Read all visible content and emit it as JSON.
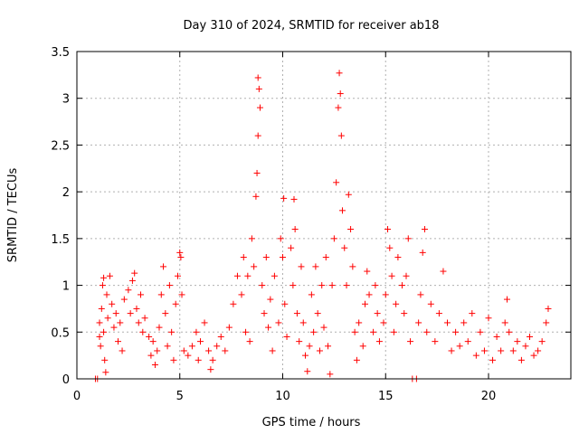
{
  "chart_data": {
    "type": "scatter",
    "title": "Day 310 of 2024, SRMTID for receiver ab18",
    "xlabel": "GPS time / hours",
    "ylabel": "SRMTID / TECUs",
    "xlim": [
      0,
      24
    ],
    "ylim": [
      0,
      3.5
    ],
    "xticks": [
      0,
      5,
      10,
      15,
      20
    ],
    "xtick_labels": [
      "0",
      "5",
      "10",
      "15",
      "20"
    ],
    "yticks": [
      0,
      0.5,
      1,
      1.5,
      2,
      2.5,
      3,
      3.5
    ],
    "ytick_labels": [
      "0",
      "0.5",
      "1",
      "1.5",
      "2",
      "2.5",
      "3",
      "3.5"
    ],
    "grid": true,
    "marker": "+",
    "color": "#ff0000",
    "series": [
      {
        "name": "SRMTID",
        "points": [
          [
            0.9,
            0.0
          ],
          [
            1.0,
            0.0
          ],
          [
            1.1,
            0.45
          ],
          [
            1.1,
            0.6
          ],
          [
            1.15,
            0.35
          ],
          [
            1.2,
            0.75
          ],
          [
            1.25,
            1.0
          ],
          [
            1.3,
            1.08
          ],
          [
            1.3,
            0.5
          ],
          [
            1.35,
            0.2
          ],
          [
            1.4,
            0.07
          ],
          [
            1.45,
            0.9
          ],
          [
            1.5,
            0.65
          ],
          [
            1.6,
            1.1
          ],
          [
            1.7,
            0.8
          ],
          [
            1.8,
            0.55
          ],
          [
            1.9,
            0.7
          ],
          [
            2.0,
            0.4
          ],
          [
            2.1,
            0.6
          ],
          [
            2.2,
            0.3
          ],
          [
            2.3,
            0.85
          ],
          [
            2.5,
            0.95
          ],
          [
            2.6,
            0.7
          ],
          [
            2.7,
            1.05
          ],
          [
            2.8,
            1.13
          ],
          [
            2.9,
            0.75
          ],
          [
            3.0,
            0.6
          ],
          [
            3.1,
            0.9
          ],
          [
            3.2,
            0.5
          ],
          [
            3.3,
            0.65
          ],
          [
            3.5,
            0.45
          ],
          [
            3.6,
            0.25
          ],
          [
            3.7,
            0.4
          ],
          [
            3.8,
            0.15
          ],
          [
            3.9,
            0.3
          ],
          [
            4.0,
            0.55
          ],
          [
            4.1,
            0.9
          ],
          [
            4.2,
            1.2
          ],
          [
            4.3,
            0.7
          ],
          [
            4.4,
            0.35
          ],
          [
            4.5,
            1.0
          ],
          [
            4.6,
            0.5
          ],
          [
            4.7,
            0.2
          ],
          [
            4.8,
            0.8
          ],
          [
            4.9,
            1.1
          ],
          [
            5.0,
            1.35
          ],
          [
            5.05,
            1.3
          ],
          [
            5.1,
            0.9
          ],
          [
            5.2,
            0.3
          ],
          [
            5.4,
            0.25
          ],
          [
            5.6,
            0.35
          ],
          [
            5.8,
            0.5
          ],
          [
            5.9,
            0.2
          ],
          [
            6.0,
            0.4
          ],
          [
            6.2,
            0.6
          ],
          [
            6.4,
            0.3
          ],
          [
            6.5,
            0.1
          ],
          [
            6.6,
            0.2
          ],
          [
            6.8,
            0.35
          ],
          [
            7.0,
            0.45
          ],
          [
            7.2,
            0.3
          ],
          [
            7.4,
            0.55
          ],
          [
            7.6,
            0.8
          ],
          [
            7.8,
            1.1
          ],
          [
            8.0,
            0.9
          ],
          [
            8.1,
            1.3
          ],
          [
            8.2,
            0.5
          ],
          [
            8.3,
            1.1
          ],
          [
            8.4,
            0.4
          ],
          [
            8.5,
            1.5
          ],
          [
            8.6,
            1.2
          ],
          [
            8.7,
            1.95
          ],
          [
            8.75,
            2.2
          ],
          [
            8.8,
            2.6
          ],
          [
            8.8,
            3.22
          ],
          [
            8.85,
            3.1
          ],
          [
            8.9,
            2.9
          ],
          [
            9.0,
            1.0
          ],
          [
            9.1,
            0.7
          ],
          [
            9.2,
            1.3
          ],
          [
            9.3,
            0.55
          ],
          [
            9.4,
            0.85
          ],
          [
            9.5,
            0.3
          ],
          [
            9.6,
            1.1
          ],
          [
            9.8,
            0.6
          ],
          [
            9.9,
            1.5
          ],
          [
            10.0,
            1.3
          ],
          [
            10.05,
            1.93
          ],
          [
            10.1,
            0.8
          ],
          [
            10.2,
            0.45
          ],
          [
            10.4,
            1.4
          ],
          [
            10.5,
            1.0
          ],
          [
            10.55,
            1.92
          ],
          [
            10.6,
            1.6
          ],
          [
            10.7,
            0.7
          ],
          [
            10.8,
            0.4
          ],
          [
            10.9,
            1.2
          ],
          [
            11.0,
            0.6
          ],
          [
            11.1,
            0.25
          ],
          [
            11.2,
            0.08
          ],
          [
            11.3,
            0.35
          ],
          [
            11.4,
            0.9
          ],
          [
            11.5,
            0.5
          ],
          [
            11.6,
            1.2
          ],
          [
            11.7,
            0.7
          ],
          [
            11.8,
            0.3
          ],
          [
            11.9,
            1.0
          ],
          [
            12.0,
            0.55
          ],
          [
            12.1,
            1.3
          ],
          [
            12.2,
            0.35
          ],
          [
            12.3,
            0.05
          ],
          [
            12.4,
            1.0
          ],
          [
            12.5,
            1.5
          ],
          [
            12.6,
            2.1
          ],
          [
            12.7,
            2.9
          ],
          [
            12.75,
            3.27
          ],
          [
            12.8,
            3.05
          ],
          [
            12.85,
            2.6
          ],
          [
            12.9,
            1.8
          ],
          [
            13.0,
            1.4
          ],
          [
            13.1,
            1.0
          ],
          [
            13.2,
            1.97
          ],
          [
            13.3,
            1.6
          ],
          [
            13.4,
            1.2
          ],
          [
            13.5,
            0.5
          ],
          [
            13.6,
            0.2
          ],
          [
            13.7,
            0.6
          ],
          [
            13.9,
            0.35
          ],
          [
            14.0,
            0.8
          ],
          [
            14.1,
            1.15
          ],
          [
            14.2,
            0.9
          ],
          [
            14.4,
            0.5
          ],
          [
            14.5,
            1.0
          ],
          [
            14.6,
            0.7
          ],
          [
            14.7,
            0.4
          ],
          [
            14.9,
            0.6
          ],
          [
            15.0,
            0.9
          ],
          [
            15.1,
            1.6
          ],
          [
            15.2,
            1.4
          ],
          [
            15.3,
            1.1
          ],
          [
            15.4,
            0.5
          ],
          [
            15.5,
            0.8
          ],
          [
            15.6,
            1.3
          ],
          [
            15.8,
            1.0
          ],
          [
            15.9,
            0.7
          ],
          [
            16.0,
            1.1
          ],
          [
            16.1,
            1.5
          ],
          [
            16.2,
            0.4
          ],
          [
            16.3,
            0.0
          ],
          [
            16.5,
            0.0
          ],
          [
            16.6,
            0.6
          ],
          [
            16.7,
            0.9
          ],
          [
            16.8,
            1.35
          ],
          [
            16.9,
            1.6
          ],
          [
            17.0,
            0.5
          ],
          [
            17.2,
            0.8
          ],
          [
            17.4,
            0.4
          ],
          [
            17.6,
            0.7
          ],
          [
            17.8,
            1.15
          ],
          [
            18.0,
            0.6
          ],
          [
            18.2,
            0.3
          ],
          [
            18.4,
            0.5
          ],
          [
            18.6,
            0.35
          ],
          [
            18.8,
            0.6
          ],
          [
            19.0,
            0.4
          ],
          [
            19.2,
            0.7
          ],
          [
            19.4,
            0.25
          ],
          [
            19.6,
            0.5
          ],
          [
            19.8,
            0.3
          ],
          [
            20.0,
            0.65
          ],
          [
            20.2,
            0.2
          ],
          [
            20.4,
            0.45
          ],
          [
            20.6,
            0.3
          ],
          [
            20.8,
            0.6
          ],
          [
            20.9,
            0.85
          ],
          [
            21.0,
            0.5
          ],
          [
            21.2,
            0.3
          ],
          [
            21.4,
            0.4
          ],
          [
            21.6,
            0.2
          ],
          [
            21.8,
            0.35
          ],
          [
            22.0,
            0.45
          ],
          [
            22.2,
            0.25
          ],
          [
            22.4,
            0.3
          ],
          [
            22.6,
            0.4
          ],
          [
            22.8,
            0.6
          ],
          [
            22.9,
            0.75
          ]
        ]
      }
    ]
  }
}
